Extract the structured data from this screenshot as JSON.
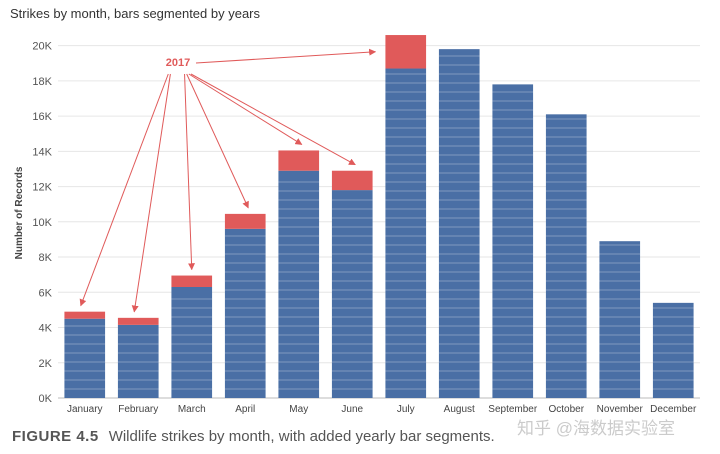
{
  "title": "Strikes by month, bars segmented by years",
  "caption": {
    "label": "FIGURE 4.5",
    "text": "Wildlife strikes by month, with added yearly bar segments."
  },
  "watermark": "知乎 @海数据实验室",
  "colors": {
    "base": "#4a6fa5",
    "highlight": "#e05a5a",
    "grid": "#e6e6e6"
  },
  "chart_data": {
    "type": "bar",
    "stacked": true,
    "ylabel": "Number of Records",
    "ylim": [
      0,
      21000
    ],
    "yticks": [
      0,
      2000,
      4000,
      6000,
      8000,
      10000,
      12000,
      14000,
      16000,
      18000,
      20000
    ],
    "ytick_labels": [
      "0K",
      "2K",
      "4K",
      "6K",
      "8K",
      "10K",
      "12K",
      "14K",
      "16K",
      "18K",
      "20K"
    ],
    "categories": [
      "January",
      "February",
      "March",
      "April",
      "May",
      "June",
      "July",
      "August",
      "September",
      "October",
      "November",
      "December"
    ],
    "series": [
      {
        "values": [
          4500,
          4150,
          6300,
          9600,
          12900,
          11800,
          18700,
          19800,
          17800,
          16100,
          8900,
          5400
        ]
      },
      {
        "name": "2017",
        "values": [
          400,
          400,
          650,
          850,
          1150,
          1100,
          1900,
          0,
          0,
          0,
          0,
          0
        ]
      }
    ],
    "totals": [
      4900,
      4550,
      6950,
      10450,
      14050,
      12900,
      20600,
      19800,
      17800,
      16100,
      8900,
      5400
    ],
    "annotation": {
      "text": "2017"
    },
    "grid": true
  }
}
